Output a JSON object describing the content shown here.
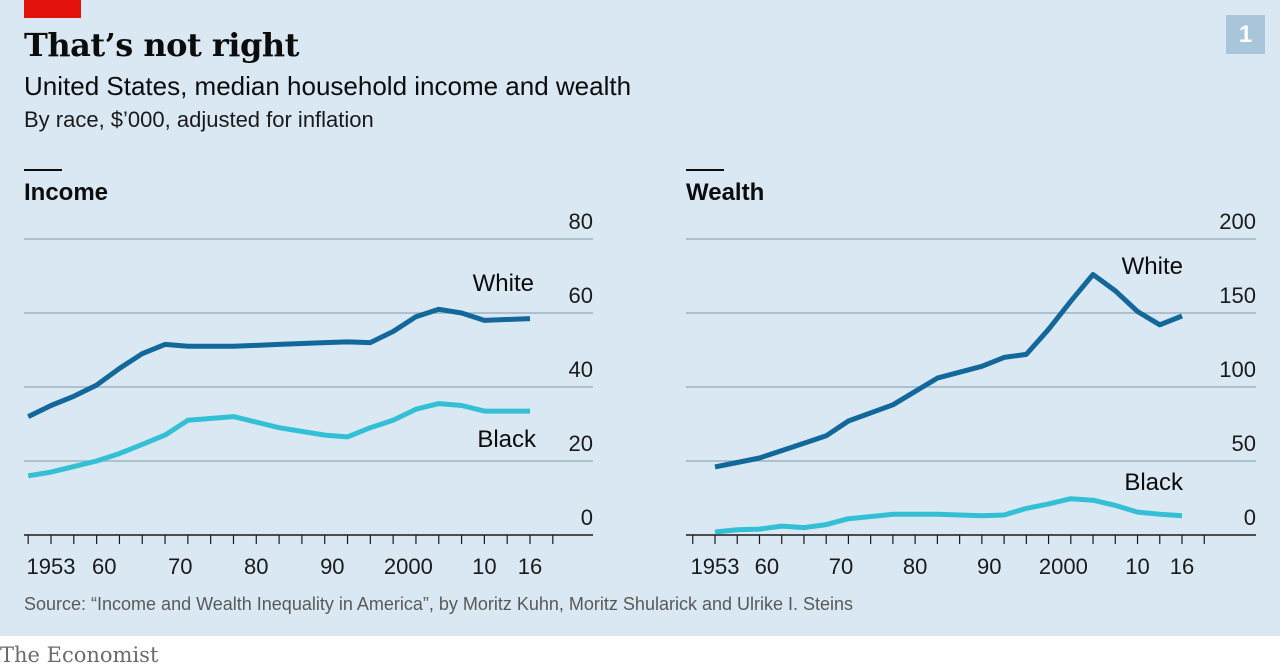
{
  "header": {
    "title": "That’s not right",
    "subtitle": "United States, median household income and wealth",
    "units": "By race, $’000, adjusted for inflation",
    "chart_number": "1"
  },
  "footer": {
    "source": "Source: “Income and Wealth Inequality in America”, by Moritz Kuhn, Moritz Shularick and Ulrike I. Steins",
    "brand": "The Economist"
  },
  "colors": {
    "white_series": "#13689b",
    "black_series": "#34c0d4",
    "gridline": "#9fb2bf",
    "axis": "#1a1a1a",
    "accent_red": "#e3120b"
  },
  "chart_data": [
    {
      "type": "line",
      "title": "Income",
      "xlim": [
        1950,
        2019
      ],
      "ylim": [
        0,
        80
      ],
      "y_ticks": [
        0,
        20,
        40,
        60,
        80
      ],
      "x_ticks": [
        1953,
        1960,
        1970,
        1980,
        1990,
        2000,
        2010,
        2016
      ],
      "x_tick_labels": [
        "1953",
        "60",
        "70",
        "80",
        "90",
        "2000",
        "10",
        "16"
      ],
      "grid": true,
      "series": [
        {
          "name": "White",
          "x": [
            1950,
            1953,
            1956,
            1959,
            1962,
            1965,
            1968,
            1971,
            1977,
            1983,
            1989,
            1992,
            1995,
            1998,
            2001,
            2004,
            2007,
            2010,
            2016
          ],
          "y": [
            32,
            35,
            37.5,
            40.5,
            45,
            49,
            51.5,
            51,
            51,
            51.5,
            52,
            52.2,
            52,
            55,
            59,
            61,
            60,
            58,
            58.5
          ]
        },
        {
          "name": "Black",
          "x": [
            1950,
            1953,
            1956,
            1959,
            1962,
            1965,
            1968,
            1971,
            1977,
            1983,
            1989,
            1992,
            1995,
            1998,
            2001,
            2004,
            2007,
            2010,
            2016
          ],
          "y": [
            16,
            17,
            18.5,
            20,
            22,
            24.5,
            27,
            31,
            32,
            29,
            27,
            26.5,
            29,
            31,
            34,
            35.5,
            35,
            33.5,
            33.5
          ]
        }
      ]
    },
    {
      "type": "line",
      "title": "Wealth",
      "xlim": [
        1950,
        2019
      ],
      "ylim": [
        0,
        200
      ],
      "y_ticks": [
        0,
        50,
        100,
        150,
        200
      ],
      "x_ticks": [
        1953,
        1960,
        1970,
        1980,
        1990,
        2000,
        2010,
        2016
      ],
      "x_tick_labels": [
        "1953",
        "60",
        "70",
        "80",
        "90",
        "2000",
        "10",
        "16"
      ],
      "grid": true,
      "series": [
        {
          "name": "White",
          "x": [
            1953,
            1956,
            1959,
            1962,
            1965,
            1968,
            1971,
            1977,
            1983,
            1989,
            1992,
            1995,
            1998,
            2001,
            2004,
            2007,
            2010,
            2013,
            2016
          ],
          "y": [
            46,
            49,
            52,
            57,
            62,
            67,
            77,
            88,
            106,
            114,
            120,
            122,
            139,
            158,
            176,
            165,
            151,
            142,
            148
          ]
        },
        {
          "name": "Black",
          "x": [
            1953,
            1956,
            1959,
            1962,
            1965,
            1968,
            1971,
            1977,
            1983,
            1989,
            1992,
            1995,
            1998,
            2001,
            2004,
            2007,
            2010,
            2013,
            2016
          ],
          "y": [
            2,
            3.5,
            4,
            6,
            5,
            7,
            11,
            14,
            14,
            13,
            13.5,
            18,
            21,
            24.5,
            23.5,
            20,
            15.5,
            14,
            13
          ]
        }
      ]
    }
  ]
}
